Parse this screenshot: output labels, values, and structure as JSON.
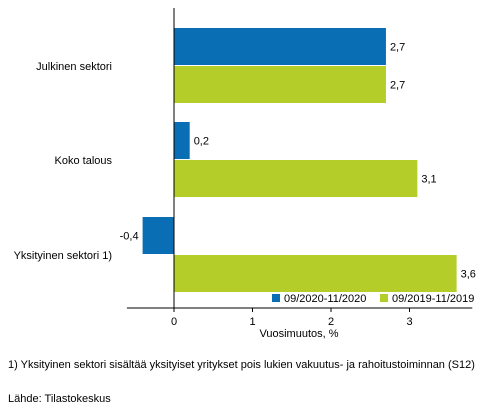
{
  "chart_data": {
    "type": "bar",
    "orientation": "horizontal",
    "categories": [
      "Julkinen sektori",
      "Koko talous",
      "Yksityinen sektori 1)"
    ],
    "series": [
      {
        "name": "09/2020-11/2020",
        "values": [
          2.7,
          0.2,
          -0.4
        ],
        "labels": [
          "2,7",
          "0,2",
          "-0,4"
        ],
        "color": "#0a6eb4"
      },
      {
        "name": "09/2019-11/2019",
        "values": [
          2.7,
          3.1,
          3.6
        ],
        "labels": [
          "2,7",
          "3,1",
          "3,6"
        ],
        "color": "#b4cd28"
      }
    ],
    "xlabel": "Vuosimuutos, %",
    "xlim": [
      -0.6,
      3.8
    ],
    "xticks": [
      0,
      1,
      2,
      3
    ],
    "xtick_labels": [
      "0",
      "1",
      "2",
      "3"
    ],
    "grid": false,
    "legend_position": "bottom-right"
  },
  "footnote": "1) Yksityinen sektori sisältää yksityiset yritykset pois lukien vakuutus- ja rahoitustoiminnan (S12)",
  "source": "Lähde: Tilastokeskus"
}
